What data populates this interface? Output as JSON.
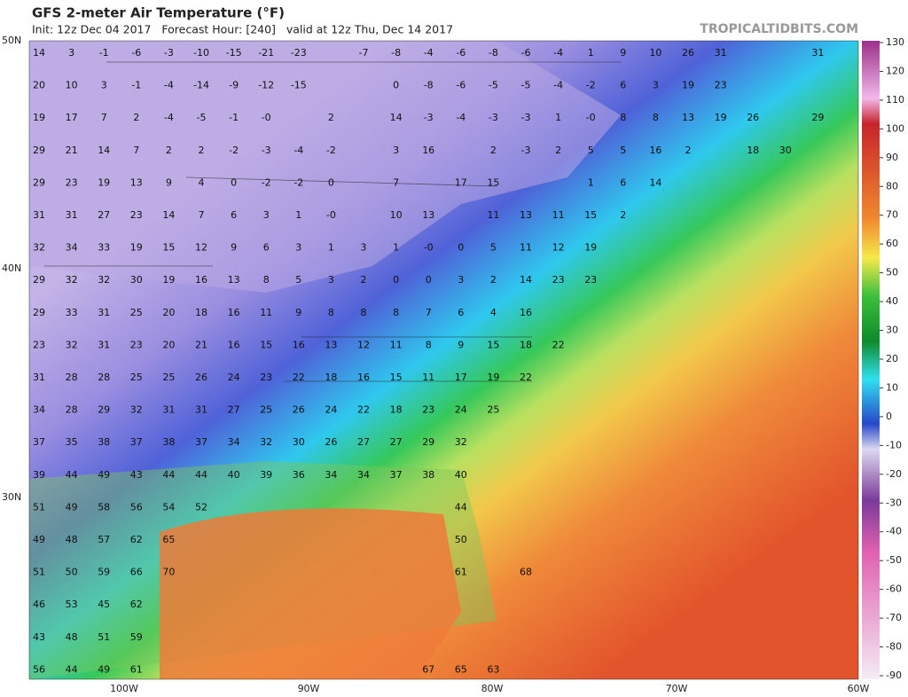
{
  "header": {
    "title": "GFS 2-meter Air Temperature (°F)",
    "subtitle": "Init: 12z Dec 04 2017   Forecast Hour: [240]   valid at 12z Thu, Dec 14 2017",
    "watermark": "TROPICALTIDBITS.COM"
  },
  "axes": {
    "lat_labels": [
      "50N",
      "40N",
      "30N"
    ],
    "lon_labels": [
      "100W",
      "90W",
      "80W",
      "70W",
      "60W"
    ]
  },
  "colorbar": {
    "lim": [
      -90,
      130
    ],
    "ticks": [
      130,
      120,
      110,
      100,
      90,
      80,
      70,
      60,
      50,
      40,
      30,
      20,
      10,
      0,
      -10,
      -20,
      -30,
      -40,
      -50,
      -60,
      -70,
      -80,
      -90
    ]
  },
  "stations": [
    [
      "14",
      "3",
      "-1",
      "-6",
      "-3",
      "-10",
      "-15",
      "-21",
      "-23",
      null,
      "-7",
      "-8",
      "-4",
      "-6",
      "-8",
      "-6",
      "-4",
      "1",
      "9",
      "10",
      "26",
      "31",
      null,
      null,
      "31"
    ],
    [
      "20",
      "10",
      "3",
      "-1",
      "-4",
      "-14",
      "-9",
      "-12",
      "-15",
      null,
      null,
      "0",
      "-8",
      "-6",
      "-5",
      "-5",
      "-4",
      "-2",
      "6",
      "3",
      "19",
      "23"
    ],
    [
      "19",
      "17",
      "7",
      "2",
      "-4",
      "-5",
      "-1",
      "-0",
      null,
      "2",
      null,
      "14",
      "-3",
      "-4",
      "-3",
      "-3",
      "1",
      "-0",
      "8",
      "8",
      "13",
      "19",
      "26",
      null,
      "29"
    ],
    [
      "29",
      "21",
      "14",
      "7",
      "2",
      "2",
      "-2",
      "-3",
      "-4",
      "-2",
      null,
      "3",
      "16",
      null,
      "2",
      "-3",
      "2",
      "5",
      "5",
      "16",
      "2",
      null,
      "18",
      "30"
    ],
    [
      "29",
      "23",
      "19",
      "13",
      "9",
      "4",
      "0",
      "-2",
      "-2",
      "0",
      null,
      "7",
      null,
      "17",
      "15",
      null,
      null,
      "1",
      "6",
      "14"
    ],
    [
      "31",
      "31",
      "27",
      "23",
      "14",
      "7",
      "6",
      "3",
      "1",
      "-0",
      null,
      "10",
      "13",
      null,
      "11",
      "13",
      "11",
      "15",
      "2"
    ],
    [
      "32",
      "34",
      "33",
      "19",
      "15",
      "12",
      "9",
      "6",
      "3",
      "1",
      "3",
      "1",
      "-0",
      "0",
      "5",
      "11",
      "12",
      "19"
    ],
    [
      "29",
      "32",
      "32",
      "30",
      "19",
      "16",
      "13",
      "8",
      "5",
      "3",
      "2",
      "0",
      "0",
      "3",
      "2",
      "14",
      "23",
      "23"
    ],
    [
      "29",
      "33",
      "31",
      "25",
      "20",
      "18",
      "16",
      "11",
      "9",
      "8",
      "8",
      "8",
      "7",
      "6",
      "4",
      "16"
    ],
    [
      "23",
      "32",
      "31",
      "23",
      "20",
      "21",
      "16",
      "15",
      "16",
      "13",
      "12",
      "11",
      "8",
      "9",
      "15",
      "18",
      "22"
    ],
    [
      "31",
      "28",
      "28",
      "25",
      "25",
      "26",
      "24",
      "23",
      "22",
      "18",
      "16",
      "15",
      "11",
      "17",
      "19",
      "22"
    ],
    [
      "34",
      "28",
      "29",
      "32",
      "31",
      "31",
      "27",
      "25",
      "26",
      "24",
      "22",
      "18",
      "23",
      "24",
      "25"
    ],
    [
      "37",
      "35",
      "38",
      "37",
      "38",
      "37",
      "34",
      "32",
      "30",
      "26",
      "27",
      "27",
      "29",
      "32"
    ],
    [
      "39",
      "44",
      "49",
      "43",
      "44",
      "44",
      "40",
      "39",
      "36",
      "34",
      "34",
      "37",
      "38",
      "40"
    ],
    [
      "51",
      "49",
      "58",
      "56",
      "54",
      "52",
      null,
      null,
      null,
      null,
      null,
      null,
      null,
      "44"
    ],
    [
      "49",
      "48",
      "57",
      "62",
      "65",
      null,
      null,
      null,
      null,
      null,
      null,
      null,
      null,
      "50"
    ],
    [
      "51",
      "50",
      "59",
      "66",
      "70",
      null,
      null,
      null,
      null,
      null,
      null,
      null,
      null,
      "61",
      null,
      "68"
    ],
    [
      "46",
      "53",
      "45",
      "62"
    ],
    [
      "43",
      "48",
      "51",
      "59"
    ],
    [
      "56",
      "44",
      "49",
      "61",
      null,
      null,
      null,
      null,
      null,
      null,
      null,
      null,
      "67",
      "65",
      "63"
    ]
  ]
}
